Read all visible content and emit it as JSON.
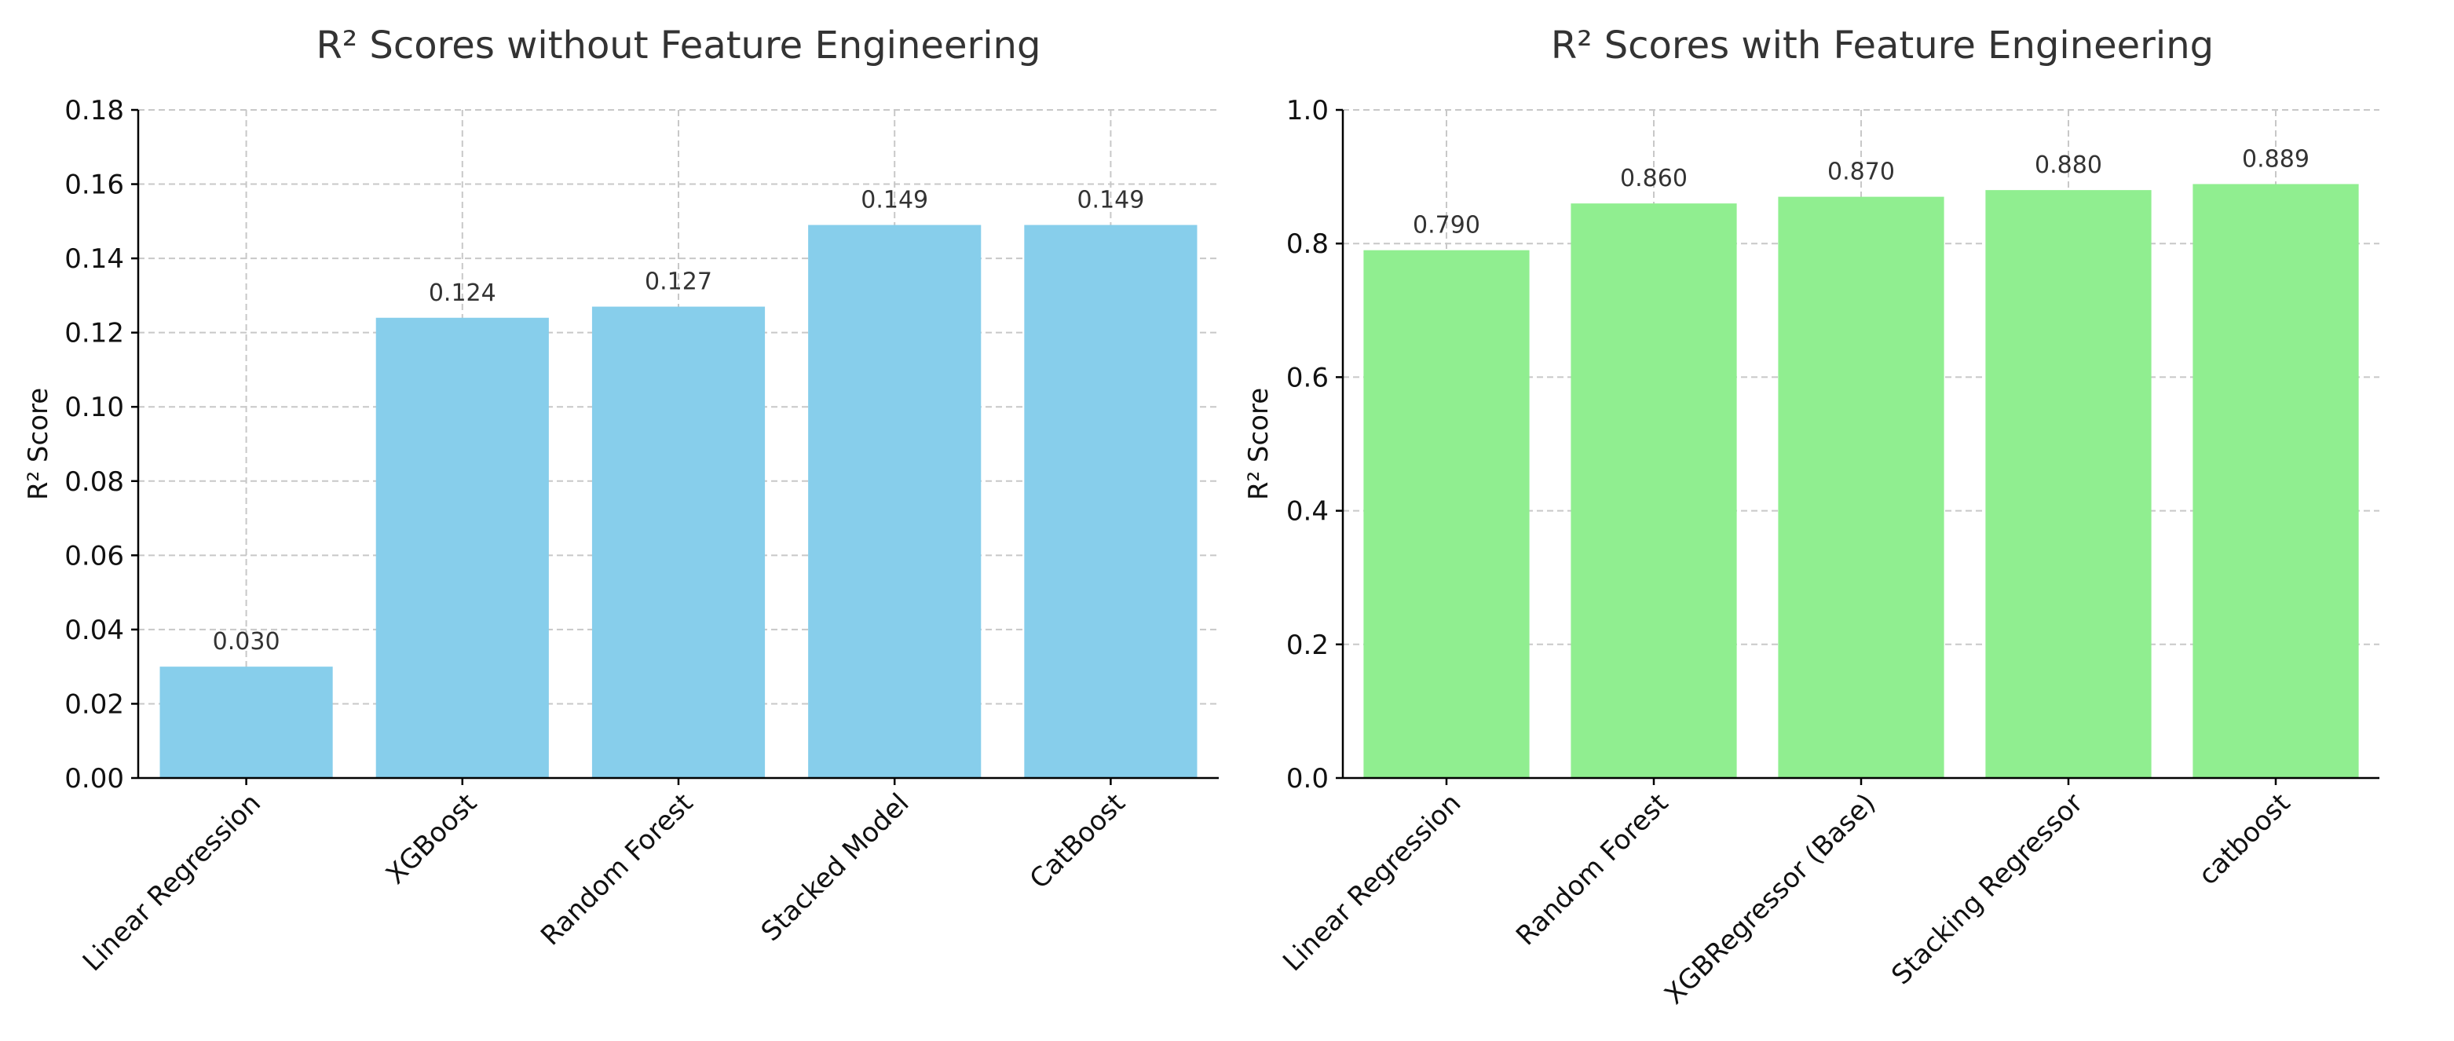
{
  "chart_data": [
    {
      "type": "bar",
      "title": "R² Scores without Feature Engineering",
      "xlabel": "",
      "ylabel": "R² Score",
      "categories": [
        "Linear Regression",
        "XGBoost",
        "Random Forest",
        "Stacked Model",
        "CatBoost"
      ],
      "values": [
        0.03,
        0.124,
        0.127,
        0.149,
        0.149
      ],
      "value_labels": [
        "0.030",
        "0.124",
        "0.127",
        "0.149",
        "0.149"
      ],
      "ylim": [
        0,
        0.18
      ],
      "yticks": [
        0.0,
        0.02,
        0.04,
        0.06,
        0.08,
        0.1,
        0.12,
        0.14,
        0.16,
        0.18
      ],
      "ytick_labels": [
        "0.00",
        "0.02",
        "0.04",
        "0.06",
        "0.08",
        "0.10",
        "0.12",
        "0.14",
        "0.16",
        "0.18"
      ],
      "bar_color": "#87ceeb",
      "grid": true
    },
    {
      "type": "bar",
      "title": "R² Scores with Feature Engineering",
      "xlabel": "",
      "ylabel": "R² Score",
      "categories": [
        "Linear Regression",
        "Random Forest",
        "XGBRegressor (Base)",
        "Stacking Regressor",
        "catboost"
      ],
      "values": [
        0.79,
        0.86,
        0.87,
        0.88,
        0.889
      ],
      "value_labels": [
        "0.790",
        "0.860",
        "0.870",
        "0.880",
        "0.889"
      ],
      "ylim": [
        0,
        1.0
      ],
      "yticks": [
        0.0,
        0.2,
        0.4,
        0.6,
        0.8,
        1.0
      ],
      "ytick_labels": [
        "0.0",
        "0.2",
        "0.4",
        "0.6",
        "0.8",
        "1.0"
      ],
      "bar_color": "#90ee90",
      "grid": true
    }
  ]
}
